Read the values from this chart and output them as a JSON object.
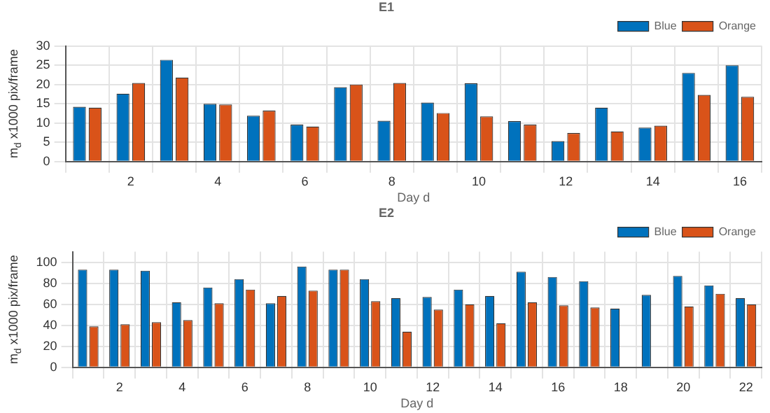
{
  "chart_data": [
    {
      "type": "bar",
      "title": "E1",
      "xlabel": "Day d",
      "ylabel": "m$_{d}$ x1000 pix/frame",
      "categories": [
        null,
        "2",
        null,
        "4",
        null,
        "6",
        null,
        "8",
        null,
        "10",
        null,
        "12",
        null,
        "14",
        null,
        "16"
      ],
      "ylim": [
        0,
        30
      ],
      "yticks": [
        0,
        5,
        10,
        15,
        20,
        25,
        30
      ],
      "grid": true,
      "legend": "top right",
      "series": [
        {
          "name": "Blue",
          "color": "#0072bd",
          "values": [
            14.2,
            17.6,
            26.4,
            15.0,
            11.9,
            9.6,
            19.3,
            10.6,
            15.3,
            20.3,
            10.5,
            5.3,
            14.0,
            8.8,
            23.0,
            25
          ]
        },
        {
          "name": "Orange",
          "color": "#d95319",
          "values": [
            14.0,
            20.4,
            21.8,
            14.8,
            13.2,
            9.1,
            20.0,
            20.4,
            12.6,
            11.7,
            9.6,
            7.4,
            7.8,
            9.3,
            17.3,
            16.8
          ]
        }
      ]
    },
    {
      "type": "bar",
      "title": "E2",
      "xlabel": "Day d",
      "ylabel": "m$_{d}$ x1000 pix/frame",
      "categories": [
        null,
        "2",
        null,
        "4",
        null,
        "6",
        null,
        "8",
        null,
        "10",
        null,
        "12",
        null,
        "14",
        null,
        "16",
        null,
        "18",
        null,
        "20",
        null,
        "22"
      ],
      "ylim": [
        0,
        110
      ],
      "yticks": [
        0,
        20,
        40,
        60,
        80,
        100
      ],
      "grid": true,
      "legend": "top right",
      "series": [
        {
          "name": "Blue",
          "color": "#0072bd",
          "values": [
            93,
            93,
            92,
            62,
            76,
            84,
            61,
            96,
            93,
            84,
            66,
            67,
            74,
            68,
            91,
            86,
            82,
            56,
            69,
            87,
            78,
            66
          ]
        },
        {
          "name": "Orange",
          "color": "#d95319",
          "values": [
            39,
            41,
            43,
            45,
            61,
            74,
            68,
            73,
            93,
            63,
            34,
            55,
            60,
            42,
            62,
            59,
            57,
            null,
            null,
            58,
            70,
            60
          ]
        }
      ]
    }
  ]
}
